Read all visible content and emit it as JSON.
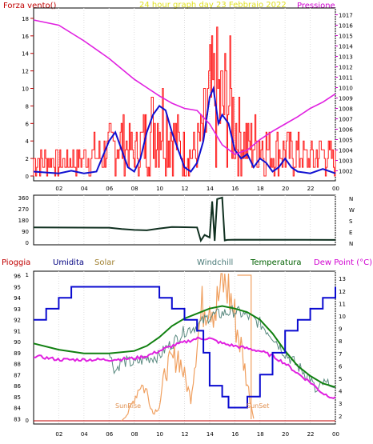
{
  "header": {
    "title": "24 hour graph day   23 Febbraio 2022",
    "left_label": "Forza vento()",
    "right_label": "Pressione"
  },
  "legend": {
    "pioggia": "Pioggia",
    "umidita": "Umidita",
    "solar": "Solar",
    "windchill": "Windchill",
    "temperatura": "Temperatura",
    "dewpoint": "Dew Point (°C)"
  },
  "annotations": {
    "sunrise": "SunRise",
    "sunset": "SunSet"
  },
  "colors": {
    "wind": "#ff1a1a",
    "wind_avg": "#1010d0",
    "pressure": "#e020e0",
    "direction": "#103020",
    "humidity": "#0a0ad0",
    "solar": "#f0a060",
    "windchill": "#5a8a80",
    "temperature": "#108010",
    "dewpoint": "#e020e0",
    "rain": "#c00000",
    "axis_right_temp": "#007000",
    "axis_left_hum": "#0000c0"
  },
  "chart_data": [
    {
      "type": "line",
      "title": "24 hour graph day   23 Febbraio 2022",
      "xlabel": "",
      "ylabel": "Forza vento()",
      "y2label": "Pressione",
      "x_ticks": [
        "02",
        "04",
        "06",
        "08",
        "10",
        "12",
        "14",
        "16",
        "18",
        "20",
        "22",
        "00"
      ],
      "y_ticks": [
        "0",
        "2",
        "4",
        "6",
        "8",
        "10",
        "12",
        "14",
        "16",
        "18"
      ],
      "y2_ticks": [
        "1002",
        "1003",
        "1004",
        "1005",
        "1006",
        "1007",
        "1008",
        "1009",
        "1010",
        "1011",
        "1012",
        "1013",
        "1014",
        "1015",
        "1016",
        "1017"
      ],
      "ylim": [
        0,
        19
      ],
      "y2lim": [
        1001.5,
        1017.5
      ],
      "series": [
        {
          "key": "pressure",
          "hours": [
            0,
            2,
            4,
            6,
            8,
            9,
            10,
            11,
            12,
            13,
            14,
            15,
            16,
            17,
            18,
            19,
            20,
            21,
            22,
            23,
            24
          ],
          "values": [
            1016.5,
            1016,
            1014.5,
            1012.8,
            1010.8,
            1010,
            1009.2,
            1008.5,
            1008,
            1007.8,
            1006.5,
            1004.5,
            1003.6,
            1004,
            1005,
            1005.8,
            1006.5,
            1007.2,
            1008,
            1008.6,
            1009.4
          ]
        },
        {
          "key": "wind_avg",
          "hours": [
            0,
            2,
            3,
            4,
            5,
            6,
            6.5,
            7,
            7.5,
            8,
            8.5,
            9,
            9.5,
            10,
            10.5,
            11,
            11.5,
            12,
            12.5,
            13,
            13.5,
            14,
            14.3,
            14.7,
            15,
            15.5,
            16,
            16.5,
            17,
            17.5,
            18,
            18.5,
            19,
            19.5,
            20,
            20.5,
            21,
            22,
            23,
            24
          ],
          "values": [
            0.5,
            0.3,
            0.6,
            0.3,
            0.5,
            4,
            5,
            3,
            1,
            0.5,
            2,
            5,
            7,
            8,
            7.5,
            5,
            3,
            1,
            0.5,
            1.5,
            4,
            9,
            10,
            6,
            7,
            6,
            3,
            2,
            2.5,
            1,
            2,
            1.5,
            0.5,
            1,
            2,
            1,
            0.5,
            0.3,
            0.8,
            0.3
          ]
        },
        {
          "key": "wind_gust_envelope",
          "hours": [
            0,
            2,
            4,
            6,
            7,
            8,
            9,
            9.5,
            10,
            10.5,
            11,
            12,
            13,
            13.5,
            14,
            14.5,
            15,
            15.5,
            16,
            17,
            18,
            19,
            20,
            21,
            22,
            23,
            24
          ],
          "values": [
            4,
            3,
            4,
            6,
            8,
            5,
            9,
            11,
            13,
            12,
            9,
            5,
            6,
            10,
            16,
            18,
            15,
            18,
            11,
            7,
            8,
            5,
            6,
            5,
            4,
            5,
            3
          ]
        }
      ]
    },
    {
      "type": "line",
      "ylabel": "",
      "y_ticks": [
        "0",
        "90",
        "180",
        "270",
        "360"
      ],
      "y_ticks_right": [
        "N",
        "E",
        "S",
        "W",
        "N"
      ],
      "ylim": [
        0,
        360
      ],
      "series": [
        {
          "key": "direction",
          "hours": [
            0,
            6,
            7,
            8,
            9,
            10,
            11,
            12,
            13,
            13.3,
            13.6,
            14,
            14.2,
            14.4,
            14.6,
            15,
            15.2,
            15.4,
            16,
            24
          ],
          "values": [
            120,
            118,
            108,
            100,
            97,
            112,
            124,
            122,
            120,
            14,
            60,
            40,
            330,
            12,
            348,
            360,
            16,
            20,
            22,
            20
          ]
        }
      ]
    },
    {
      "type": "line",
      "ylabel": "Umidita",
      "y_ticks": [
        "83",
        "84",
        "85",
        "86",
        "87",
        "88",
        "89",
        "90",
        "91",
        "92",
        "93",
        "94",
        "95",
        "96"
      ],
      "y_ticks_right": [
        "2",
        "3",
        "4",
        "5",
        "6",
        "7",
        "8",
        "9",
        "10",
        "11",
        "12",
        "13"
      ],
      "ylim": [
        82.8,
        96.2
      ],
      "y2lim": [
        1.6,
        13.4
      ],
      "series": [
        {
          "key": "humidity",
          "hours": [
            0,
            1,
            2,
            3,
            4,
            5,
            6,
            7,
            8,
            9,
            10,
            11,
            12,
            13,
            13.5,
            14,
            15,
            15.5,
            16,
            17,
            18,
            19,
            20,
            21,
            22,
            23,
            24
          ],
          "values": [
            92,
            93,
            94,
            95,
            95,
            95,
            95,
            95,
            95,
            95,
            94,
            93,
            92,
            91,
            89,
            86,
            85,
            84,
            84,
            85,
            87,
            89,
            91,
            92,
            93,
            94,
            95
          ]
        },
        {
          "key": "temperature",
          "hours": [
            0,
            2,
            4,
            6,
            8,
            9,
            10,
            11,
            12,
            13,
            14,
            15,
            16,
            17,
            18,
            19,
            20,
            21,
            22,
            23,
            24
          ],
          "values": [
            7.8,
            7.3,
            7.0,
            7.0,
            7.2,
            7.6,
            8.3,
            9.2,
            9.8,
            10.2,
            10.6,
            10.8,
            10.6,
            10.3,
            9.7,
            8.6,
            7.2,
            6.0,
            5.2,
            4.6,
            4.3
          ]
        },
        {
          "key": "dewpoint",
          "hours": [
            0,
            2,
            4,
            6,
            8,
            9,
            10,
            11,
            12,
            13,
            14,
            15,
            16,
            17,
            18,
            19,
            20,
            21,
            22,
            23,
            24
          ],
          "values": [
            6.8,
            6.5,
            6.5,
            6.5,
            6.6,
            6.8,
            7.2,
            7.6,
            7.9,
            8.2,
            8.2,
            7.8,
            7.6,
            7.4,
            7.2,
            6.8,
            6.2,
            5.4,
            4.7,
            3.8,
            3.4
          ]
        },
        {
          "key": "windchill",
          "hours": [
            0,
            2,
            4,
            6,
            6.5,
            7,
            8,
            9,
            10,
            10.5,
            11,
            12,
            13,
            13.5,
            14,
            15,
            16,
            17,
            18,
            19,
            20,
            21,
            22,
            22.5,
            23,
            24
          ],
          "values": [
            7.8,
            7.3,
            7.0,
            7.0,
            5.6,
            6.4,
            6.2,
            6.6,
            6.8,
            7.4,
            7.8,
            8.8,
            9.2,
            9.6,
            10.0,
            10.2,
            10.4,
            10.0,
            9.4,
            8.4,
            7.0,
            6.0,
            5.0,
            3.8,
            4.6,
            4.2
          ]
        },
        {
          "key": "solar",
          "hours": [
            7,
            7.5,
            8,
            8.5,
            9,
            9.5,
            10,
            10.5,
            11,
            11.5,
            12,
            12.5,
            13,
            13.5,
            14,
            14.5,
            15,
            15.5,
            16,
            16.5,
            17,
            17.5
          ],
          "values": [
            0,
            0.05,
            0.15,
            0.25,
            0.2,
            0.05,
            0.1,
            0.35,
            0.4,
            0.45,
            0.3,
            0.15,
            0.55,
            0.8,
            0.85,
            0.75,
            0.95,
            0.9,
            0.7,
            0.5,
            0.25,
            0.02
          ]
        }
      ]
    }
  ]
}
